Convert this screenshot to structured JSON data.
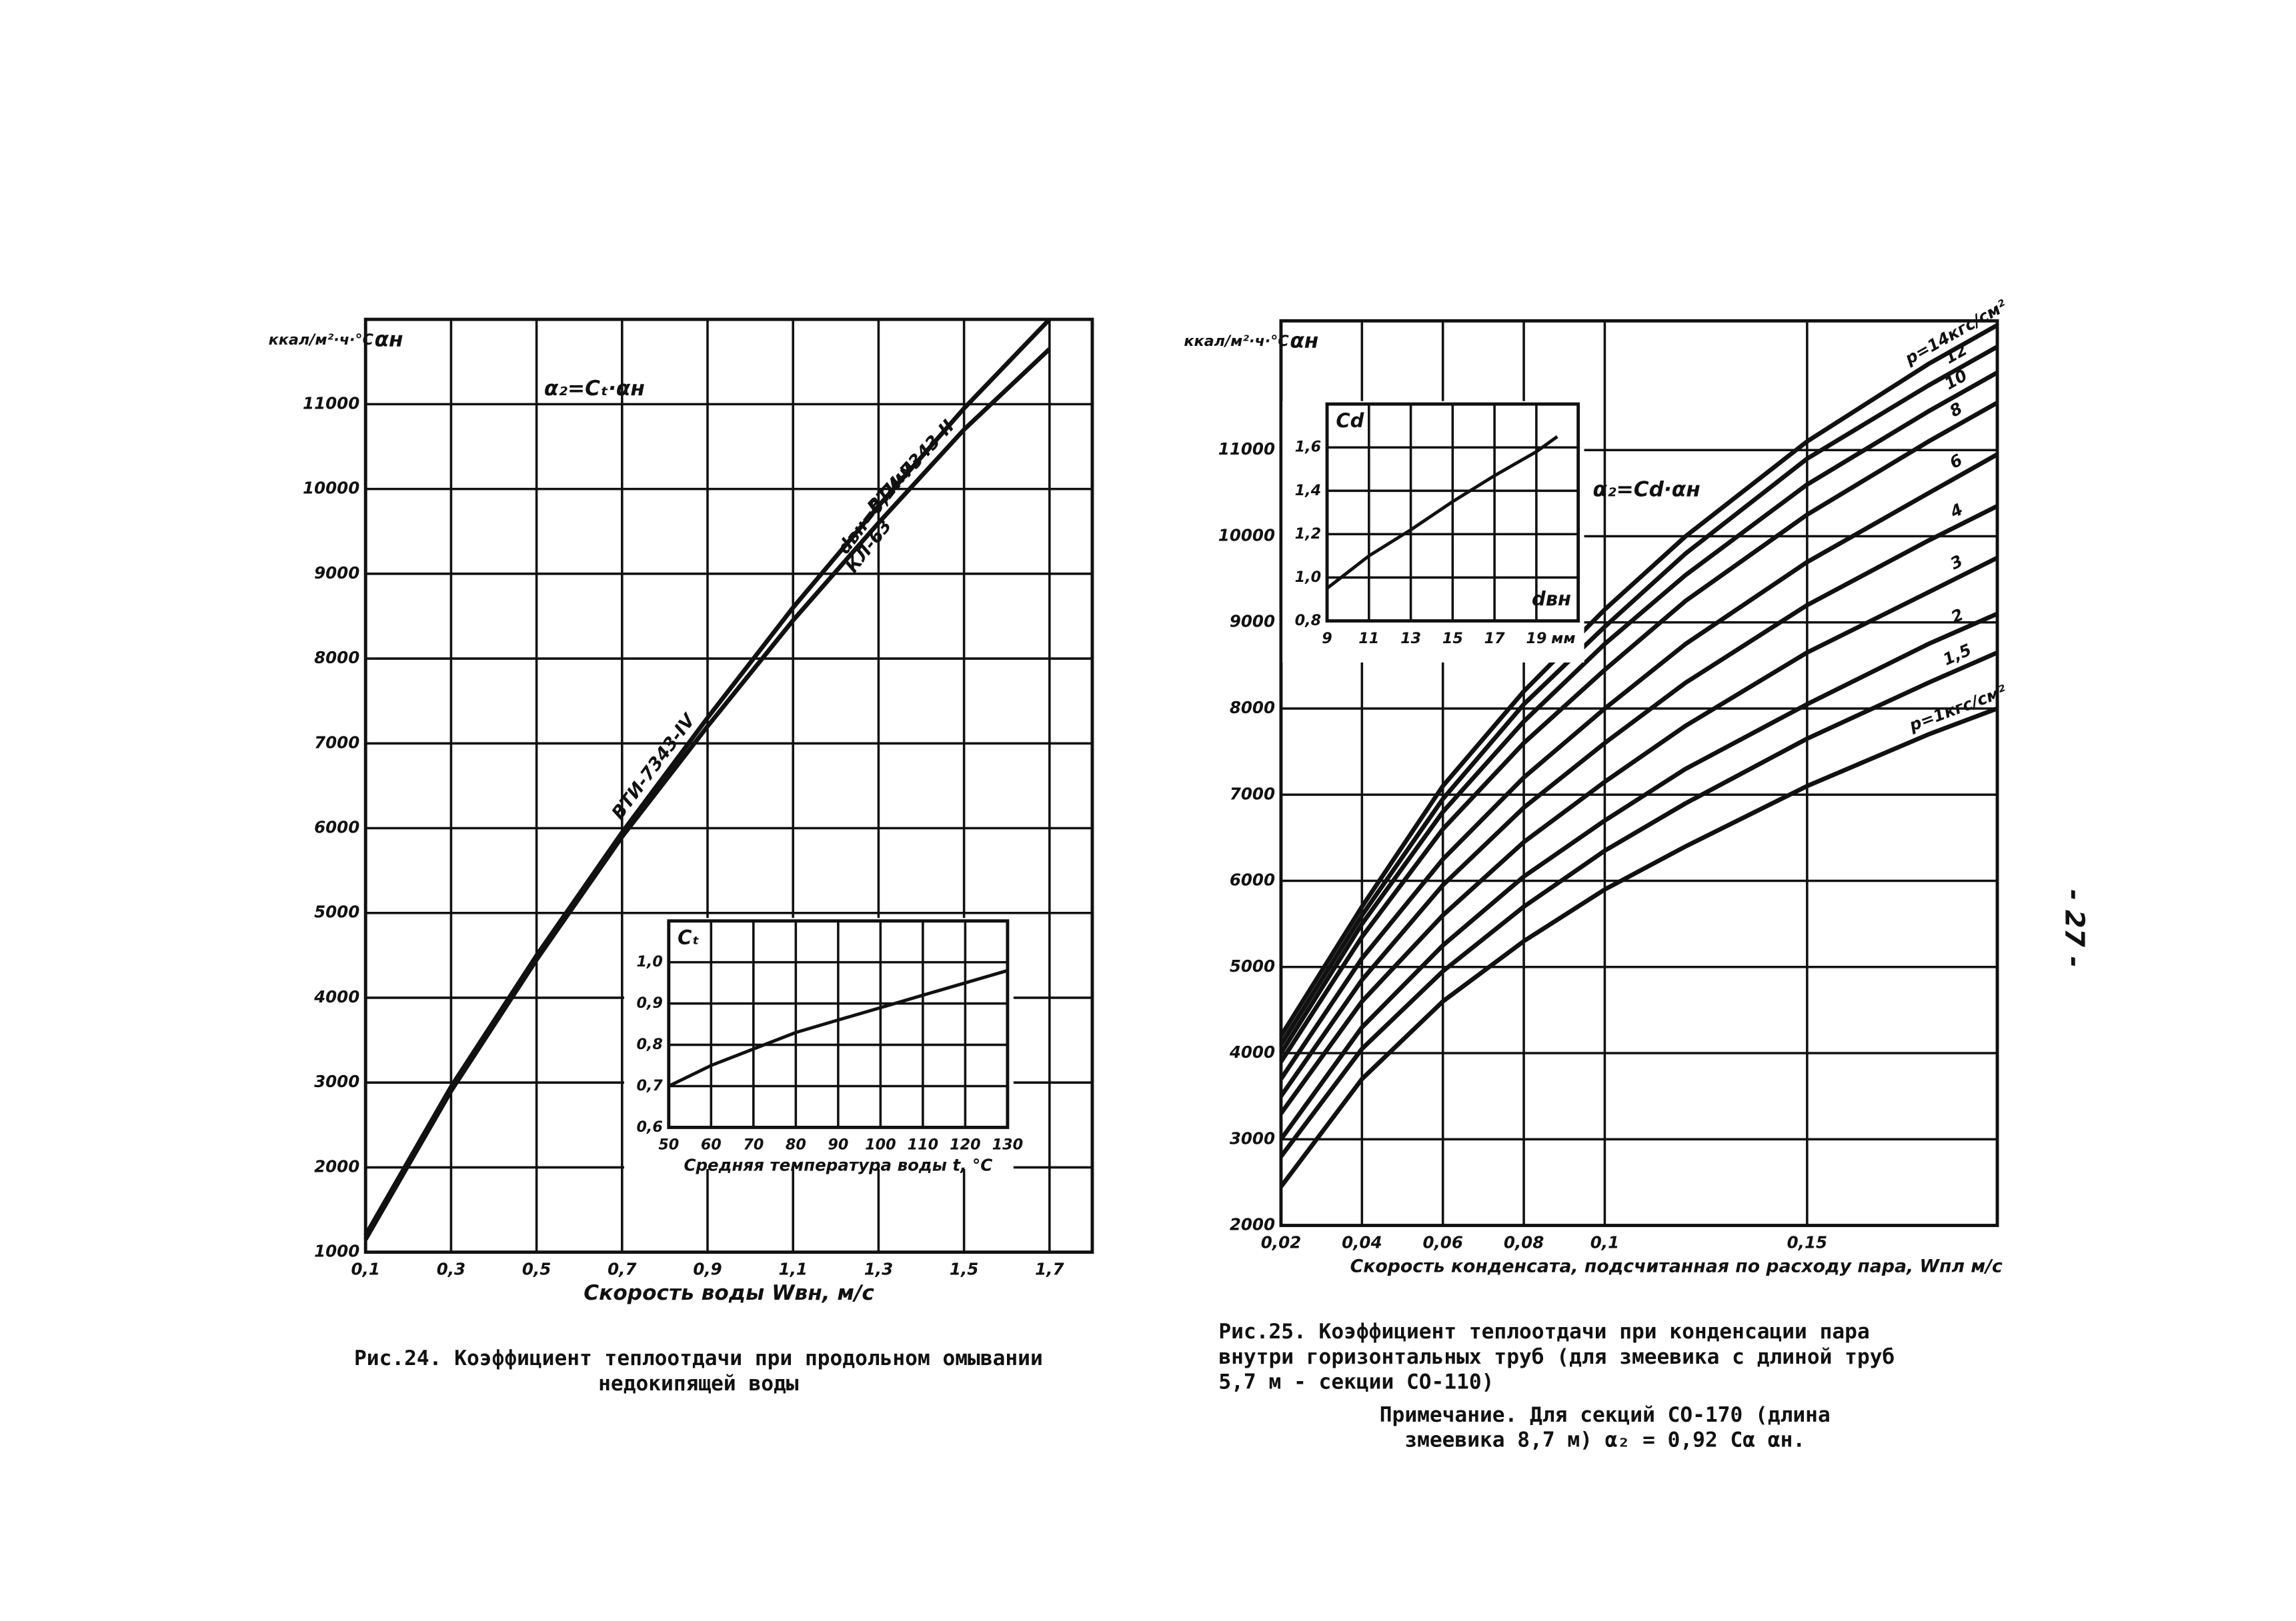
{
  "chart_data": [
    {
      "type": "line",
      "y_unit": "ккал/м²·ч·°С",
      "y_label": "αн",
      "x_label": "Скорость воды Wвн, м/с",
      "annotations": [
        "α₂=Cₜ·αн",
        "dвн=9,2мм",
        "КЛ-63"
      ],
      "caption": [
        "Рис.24. Коэффициент теплоотдачи при продольном омывании",
        "недокипящей воды"
      ],
      "xlim": [
        0.1,
        1.8
      ],
      "ylim": [
        1000,
        12000
      ],
      "xticks": [
        {
          "value": 0.1,
          "label": "0,1"
        },
        {
          "value": 0.3,
          "label": "0,3"
        },
        {
          "value": 0.5,
          "label": "0,5"
        },
        {
          "value": 0.7,
          "label": "0,7"
        },
        {
          "value": 0.9,
          "label": "0,9"
        },
        {
          "value": 1.1,
          "label": "1,1"
        },
        {
          "value": 1.3,
          "label": "1,3"
        },
        {
          "value": 1.5,
          "label": "1,5"
        },
        {
          "value": 1.7,
          "label": "1,7"
        }
      ],
      "yticks": [
        1000,
        2000,
        3000,
        4000,
        5000,
        6000,
        7000,
        8000,
        9000,
        10000,
        11000
      ],
      "grid": true,
      "x": [
        0.1,
        0.3,
        0.5,
        0.7,
        0.9,
        1.1,
        1.3,
        1.5,
        1.7
      ],
      "series": [
        {
          "name": "ВТИ-7343-IV",
          "color": "#111111",
          "values": [
            1200,
            2950,
            4500,
            5950,
            7300,
            8600,
            9800,
            10950,
            12000
          ]
        },
        {
          "name": "ВТИ-7343-II",
          "color": "#111111",
          "values": [
            1150,
            2900,
            4450,
            5900,
            7200,
            8450,
            9600,
            10700,
            11650
          ]
        }
      ],
      "inset": {
        "type": "line",
        "y_label": "Cₜ",
        "x_label": "Средняя температура воды t, °С",
        "xlim": [
          50,
          130
        ],
        "ylim": [
          0.6,
          1.1
        ],
        "xticks": [
          50,
          60,
          70,
          80,
          90,
          100,
          110,
          120,
          130
        ],
        "yticks": [
          {
            "value": 0.6,
            "label": "0,6"
          },
          {
            "value": 0.7,
            "label": "0,7"
          },
          {
            "value": 0.8,
            "label": "0,8"
          },
          {
            "value": 0.9,
            "label": "0,9"
          },
          {
            "value": 1.0,
            "label": "1,0"
          }
        ],
        "grid": true,
        "x": [
          50,
          60,
          70,
          80,
          90,
          100,
          110,
          120,
          130
        ],
        "series": [
          {
            "color": "#111111",
            "values": [
              0.7,
              0.75,
              0.79,
              0.83,
              0.86,
              0.89,
              0.92,
              0.95,
              0.98
            ]
          }
        ]
      }
    },
    {
      "type": "line",
      "y_unit": "ккал/м²·ч·°С",
      "y_label": "αн",
      "x_label": "Скорость конденсата, подсчитанная по расходу пара, Wпл м/с",
      "annotations": [
        "α₂=Cd·αн"
      ],
      "caption": [
        "Рис.25. Коэффициент теплоотдачи при конденсации пара",
        "внутри горизонтальных труб (для змеевика с длиной труб",
        "5,7 м - секции СО-110)"
      ],
      "note": [
        "Примечание. Для секций СО-170 (длина",
        "змеевика 8,7 м) α₂ = 0,92 Cα αн."
      ],
      "xlim": [
        0.02,
        0.197
      ],
      "ylim": [
        2000,
        12500
      ],
      "xticks": [
        {
          "value": 0.02,
          "label": "0,02"
        },
        {
          "value": 0.04,
          "label": "0,04"
        },
        {
          "value": 0.06,
          "label": "0,06"
        },
        {
          "value": 0.08,
          "label": "0,08"
        },
        {
          "value": 0.1,
          "label": "0,1"
        },
        {
          "value": 0.15,
          "label": "0,15"
        }
      ],
      "yticks": [
        2000,
        3000,
        4000,
        5000,
        6000,
        7000,
        8000,
        9000,
        10000,
        11000
      ],
      "grid": true,
      "x": [
        0.02,
        0.04,
        0.06,
        0.08,
        0.1,
        0.12,
        0.15,
        0.18,
        0.197
      ],
      "series": [
        {
          "name": "p=1кгс/см²",
          "color": "#111111",
          "values": [
            2450,
            3700,
            4600,
            5300,
            5900,
            6400,
            7100,
            7700,
            8000
          ]
        },
        {
          "name": "1,5",
          "color": "#111111",
          "values": [
            2800,
            4050,
            4950,
            5700,
            6350,
            6900,
            7650,
            8300,
            8650
          ]
        },
        {
          "name": "2",
          "color": "#111111",
          "values": [
            3000,
            4300,
            5250,
            6050,
            6700,
            7300,
            8050,
            8750,
            9100
          ]
        },
        {
          "name": "3",
          "color": "#111111",
          "values": [
            3300,
            4600,
            5600,
            6450,
            7150,
            7800,
            8650,
            9350,
            9750
          ]
        },
        {
          "name": "4",
          "color": "#111111",
          "values": [
            3500,
            4850,
            5950,
            6850,
            7600,
            8300,
            9200,
            9950,
            10350
          ]
        },
        {
          "name": "6",
          "color": "#111111",
          "values": [
            3700,
            5100,
            6250,
            7200,
            8000,
            8750,
            9700,
            10500,
            10950
          ]
        },
        {
          "name": "8",
          "color": "#111111",
          "values": [
            3900,
            5350,
            6600,
            7600,
            8450,
            9250,
            10250,
            11100,
            11550
          ]
        },
        {
          "name": "10",
          "color": "#111111",
          "values": [
            4000,
            5500,
            6800,
            7850,
            8750,
            9550,
            10600,
            11450,
            11900
          ]
        },
        {
          "name": "12",
          "color": "#111111",
          "values": [
            4100,
            5600,
            6950,
            8050,
            8950,
            9800,
            10900,
            11750,
            12200
          ]
        },
        {
          "name": "p=14кгс/см²",
          "color": "#111111",
          "values": [
            4200,
            5700,
            7100,
            8200,
            9150,
            10000,
            11100,
            12000,
            12450
          ]
        }
      ],
      "inset": {
        "type": "line",
        "y_label": "Cd",
        "x_label": "dвн",
        "x_unit": "мм",
        "xlim": [
          9,
          21
        ],
        "ylim": [
          0.8,
          1.8
        ],
        "xticks": [
          9,
          11,
          13,
          15,
          17,
          19
        ],
        "yticks": [
          {
            "value": 0.8,
            "label": "0,8"
          },
          {
            "value": 1.0,
            "label": "1,0"
          },
          {
            "value": 1.2,
            "label": "1,2"
          },
          {
            "value": 1.4,
            "label": "1,4"
          },
          {
            "value": 1.6,
            "label": "1,6"
          }
        ],
        "grid": true,
        "x": [
          9,
          11,
          13,
          15,
          17,
          19,
          20
        ],
        "series": [
          {
            "color": "#111111",
            "values": [
              0.95,
              1.1,
              1.22,
              1.35,
              1.47,
              1.58,
              1.65
            ]
          }
        ]
      }
    }
  ],
  "page_number": "- 27 -"
}
